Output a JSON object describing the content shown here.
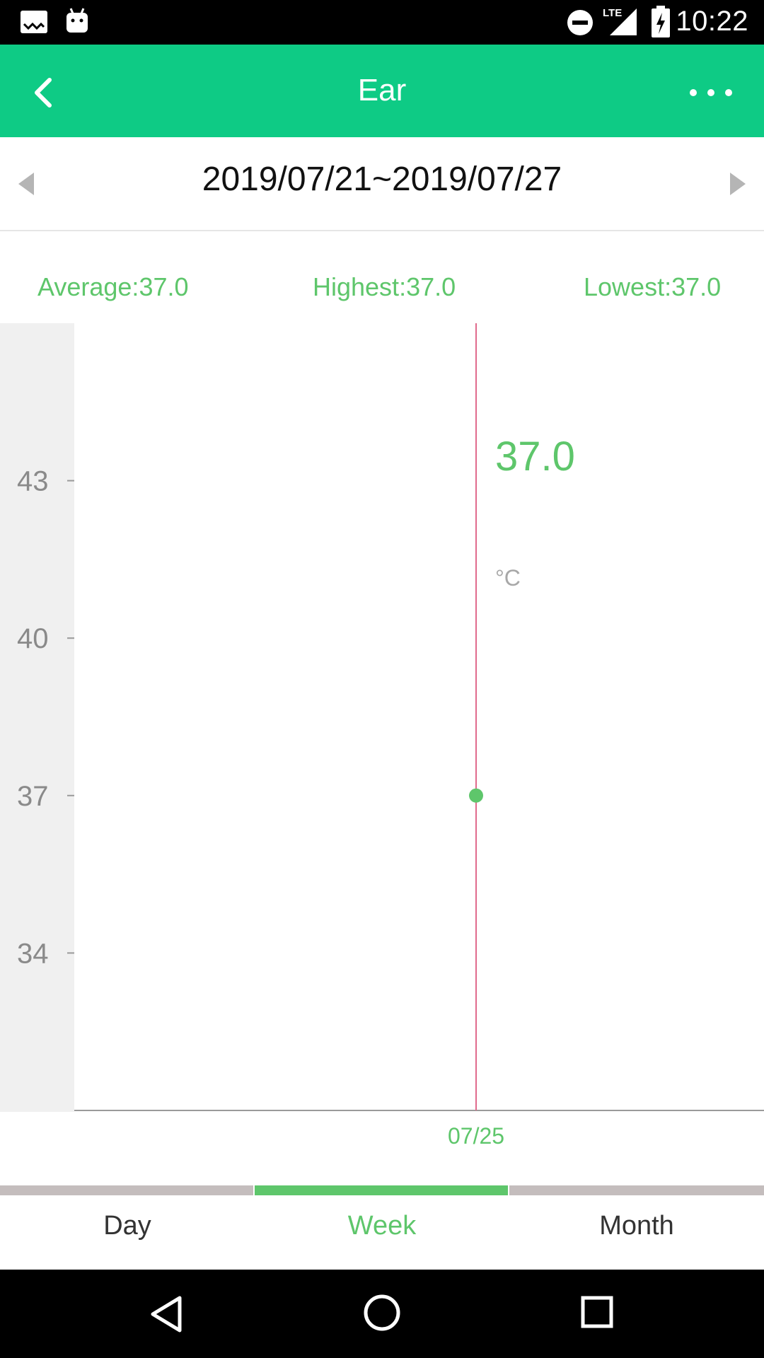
{
  "status_bar": {
    "time": "10:22",
    "icons": [
      "wallpaper-icon",
      "android-icon",
      "do-not-disturb-icon",
      "lte-signal-icon",
      "battery-charging-icon"
    ],
    "lte_label": "LTE"
  },
  "app_bar": {
    "title": "Ear",
    "back_icon": "chevron-left-icon",
    "more_icon": "more-horizontal-icon",
    "color": "#0ecb85"
  },
  "date_range": {
    "label": "2019/07/21~2019/07/27",
    "prev_icon": "triangle-left-icon",
    "next_icon": "triangle-right-icon"
  },
  "stats": {
    "average": "Average:37.0",
    "highest": "Highest:37.0",
    "lowest": "Lowest:37.0",
    "color": "#5ec66b"
  },
  "chart_data": {
    "type": "scatter",
    "y_ticks": [
      "43",
      "40",
      "37",
      "34"
    ],
    "ylim": [
      31,
      46
    ],
    "x_labels": [
      "07/25"
    ],
    "points": [
      {
        "x": "07/25",
        "y": 37.0
      }
    ],
    "selected_value": "37.0",
    "unit": "°C",
    "grid": false,
    "marker_color": "#5ec66b",
    "cursor_color": "#e06a8c"
  },
  "tabs": {
    "items": [
      "Day",
      "Week",
      "Month"
    ],
    "active": "Week",
    "active_color": "#5ec66b",
    "inactive_bar_color": "#c4bdbd"
  },
  "nav_bar": {
    "icons": [
      "back-triangle-icon",
      "home-circle-icon",
      "recents-square-icon"
    ]
  }
}
